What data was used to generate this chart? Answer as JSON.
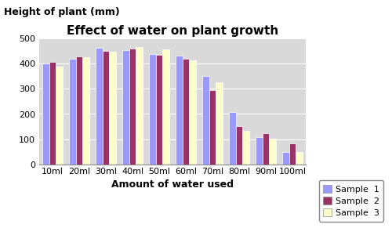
{
  "title": "Effect of water on plant growth",
  "xlabel": "Amount of water used",
  "ylabel": "Height of plant (mm)",
  "categories": [
    "10ml",
    "20ml",
    "30ml",
    "40ml",
    "50ml",
    "60ml",
    "70ml",
    "80ml",
    "90ml",
    "100ml"
  ],
  "sample1": [
    400,
    420,
    465,
    455,
    440,
    432,
    352,
    207,
    107,
    48
  ],
  "sample2": [
    408,
    430,
    450,
    460,
    435,
    420,
    295,
    152,
    122,
    82
  ],
  "sample3": [
    390,
    425,
    448,
    468,
    458,
    413,
    328,
    133,
    103,
    50
  ],
  "color1": "#9999FF",
  "color2": "#993366",
  "color3": "#FFFFCC",
  "legend_labels": [
    "Sample  1",
    "Sample  2",
    "Sample  3"
  ],
  "ylim": [
    0,
    500
  ],
  "yticks": [
    0,
    100,
    200,
    300,
    400,
    500
  ],
  "plot_bg": "#D9D9D9",
  "bar_width": 0.25,
  "title_fontsize": 11,
  "axis_label_fontsize": 9,
  "tick_fontsize": 8,
  "legend_fontsize": 8,
  "fig_bg": "#FFFFFF"
}
